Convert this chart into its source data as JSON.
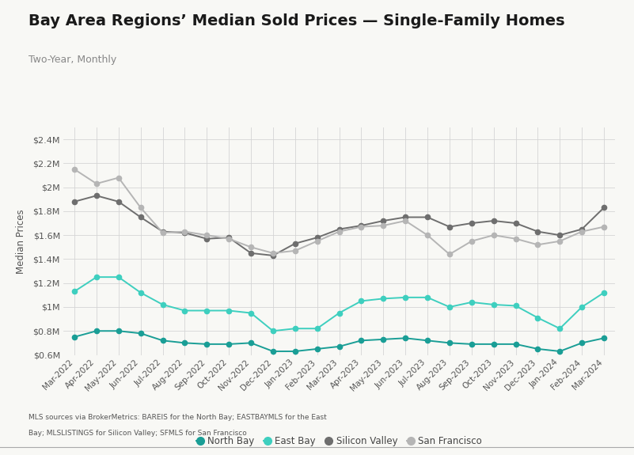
{
  "title": "Bay Area Regions’ Median Sold Prices — Single-Family Homes",
  "subtitle": "Two-Year, Monthly",
  "ylabel": "Median Prices",
  "footnote_line1": "MLS sources via BrokerMetrics: BAREIS for the North Bay; EASTBAYMLS for the East",
  "footnote_line2": "Bay; MLSLISTINGS for Silicon Valley; SFMLS for San Francisco",
  "x_labels": [
    "Mar-2022",
    "Apr-2022",
    "May-2022",
    "Jun-2022",
    "Jul-2022",
    "Aug-2022",
    "Sep-2022",
    "Oct-2022",
    "Nov-2022",
    "Dec-2022",
    "Jan-2023",
    "Feb-2023",
    "Mar-2023",
    "Apr-2023",
    "May-2023",
    "Jun-2023",
    "Jul-2023",
    "Aug-2023",
    "Sep-2023",
    "Oct-2023",
    "Nov-2023",
    "Dec-2023",
    "Jan-2024",
    "Feb-2024",
    "Mar-2024"
  ],
  "north_bay": [
    0.75,
    0.8,
    0.8,
    0.78,
    0.72,
    0.7,
    0.69,
    0.69,
    0.7,
    0.63,
    0.63,
    0.65,
    0.67,
    0.72,
    0.73,
    0.74,
    0.72,
    0.7,
    0.69,
    0.69,
    0.69,
    0.65,
    0.63,
    0.7,
    0.74
  ],
  "east_bay": [
    1.13,
    1.25,
    1.25,
    1.12,
    1.02,
    0.97,
    0.97,
    0.97,
    0.95,
    0.8,
    0.82,
    0.82,
    0.95,
    1.05,
    1.07,
    1.08,
    1.08,
    1.0,
    1.04,
    1.02,
    1.01,
    0.91,
    0.82,
    1.0,
    1.12
  ],
  "silicon_valley": [
    1.88,
    1.93,
    1.88,
    1.75,
    1.63,
    1.62,
    1.57,
    1.58,
    1.45,
    1.43,
    1.53,
    1.58,
    1.65,
    1.68,
    1.72,
    1.75,
    1.75,
    1.67,
    1.7,
    1.72,
    1.7,
    1.63,
    1.6,
    1.65,
    1.83
  ],
  "san_francisco": [
    2.15,
    2.03,
    2.08,
    1.83,
    1.62,
    1.63,
    1.6,
    1.57,
    1.5,
    1.45,
    1.47,
    1.55,
    1.63,
    1.67,
    1.68,
    1.72,
    1.6,
    1.44,
    1.55,
    1.6,
    1.57,
    1.52,
    1.55,
    1.63,
    1.67
  ],
  "north_bay_color": "#1a9e96",
  "east_bay_color": "#3ecfbf",
  "silicon_valley_color": "#6e6e6e",
  "san_francisco_color": "#b5b5b5",
  "bg_color": "#f8f8f5",
  "ylim": [
    0.6,
    2.5
  ],
  "yticks": [
    0.6,
    0.8,
    1.0,
    1.2,
    1.4,
    1.6,
    1.8,
    2.0,
    2.2,
    2.4
  ],
  "ytick_labels": [
    "$0.6M",
    "$0.8M",
    "$1M",
    "$1.2M",
    "$1.4M",
    "$1.6M",
    "$1.8M",
    "$2M",
    "$2.2M",
    "$2.4M"
  ],
  "title_fontsize": 14,
  "subtitle_fontsize": 9,
  "tick_fontsize": 7.5,
  "ytick_fontsize": 8,
  "ylabel_fontsize": 8.5,
  "footnote_fontsize": 6.5,
  "legend_fontsize": 8.5,
  "line_width": 1.4,
  "marker_size": 4.5
}
